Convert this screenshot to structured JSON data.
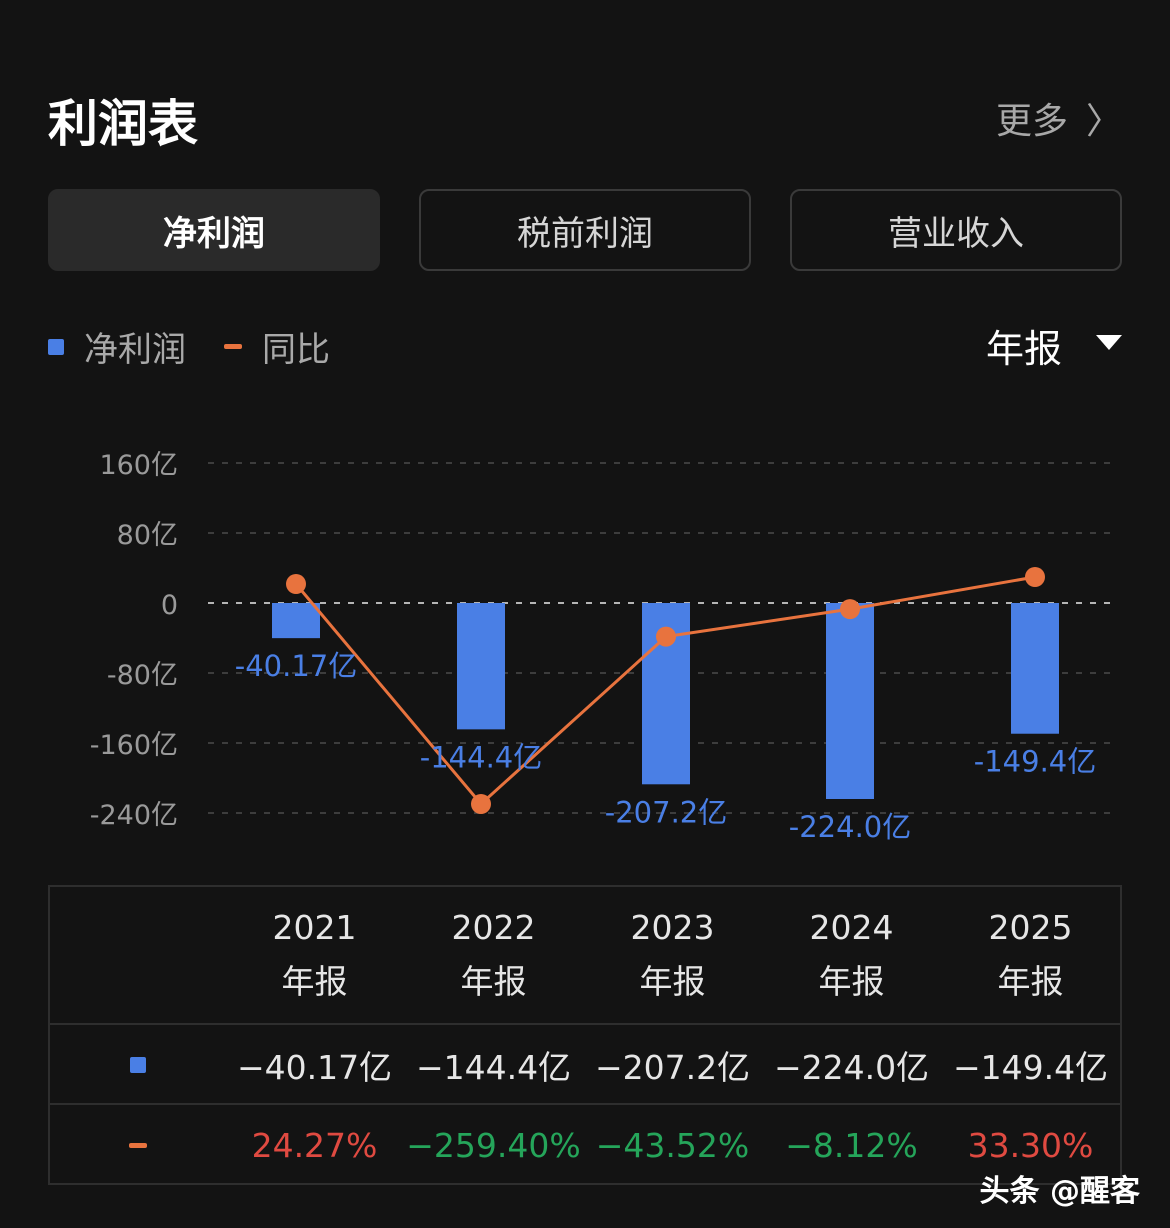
{
  "header": {
    "title": "利润表",
    "more_label": "更多"
  },
  "tabs": [
    {
      "label": "净利润",
      "active": true
    },
    {
      "label": "税前利润",
      "active": false
    },
    {
      "label": "营业收入",
      "active": false
    }
  ],
  "legend": {
    "bar_label": "净利润",
    "line_label": "同比"
  },
  "period_selector": {
    "value": "年报"
  },
  "colors": {
    "bar": "#4a7fe5",
    "line": "#e8733e",
    "positive": "#e04a41",
    "negative": "#25a55a"
  },
  "chart_data": {
    "type": "bar",
    "categories": [
      "2021年报",
      "2022年报",
      "2023年报",
      "2024年报",
      "2025年报"
    ],
    "y_ticks": [
      "160亿",
      "80亿",
      "0",
      "-80亿",
      "-160亿",
      "-240亿"
    ],
    "ylim": [
      -240,
      160
    ],
    "grid": true,
    "series": [
      {
        "name": "净利润",
        "values": [
          -40.17,
          -144.4,
          -207.2,
          -224.0,
          -149.4
        ],
        "labels": [
          "-40.17亿",
          "-144.4亿",
          "-207.2亿",
          "-224.0亿",
          "-149.4亿"
        ]
      },
      {
        "name": "同比",
        "values": [
          24.27,
          -259.4,
          -43.52,
          -8.12,
          33.3
        ]
      }
    ]
  },
  "table": {
    "columns": [
      {
        "year": "2021",
        "type": "年报"
      },
      {
        "year": "2022",
        "type": "年报"
      },
      {
        "year": "2023",
        "type": "年报"
      },
      {
        "year": "2024",
        "type": "年报"
      },
      {
        "year": "2025",
        "type": "年报"
      }
    ],
    "net_profit": [
      "−40.17亿",
      "−144.4亿",
      "−207.2亿",
      "−224.0亿",
      "−149.4亿"
    ],
    "yoy": [
      {
        "text": "24.27%",
        "sign": "pos"
      },
      {
        "text": "−259.40%",
        "sign": "neg"
      },
      {
        "text": "−43.52%",
        "sign": "neg"
      },
      {
        "text": "−8.12%",
        "sign": "neg"
      },
      {
        "text": "33.30%",
        "sign": "pos"
      }
    ]
  },
  "watermark": "头条 @醒客"
}
